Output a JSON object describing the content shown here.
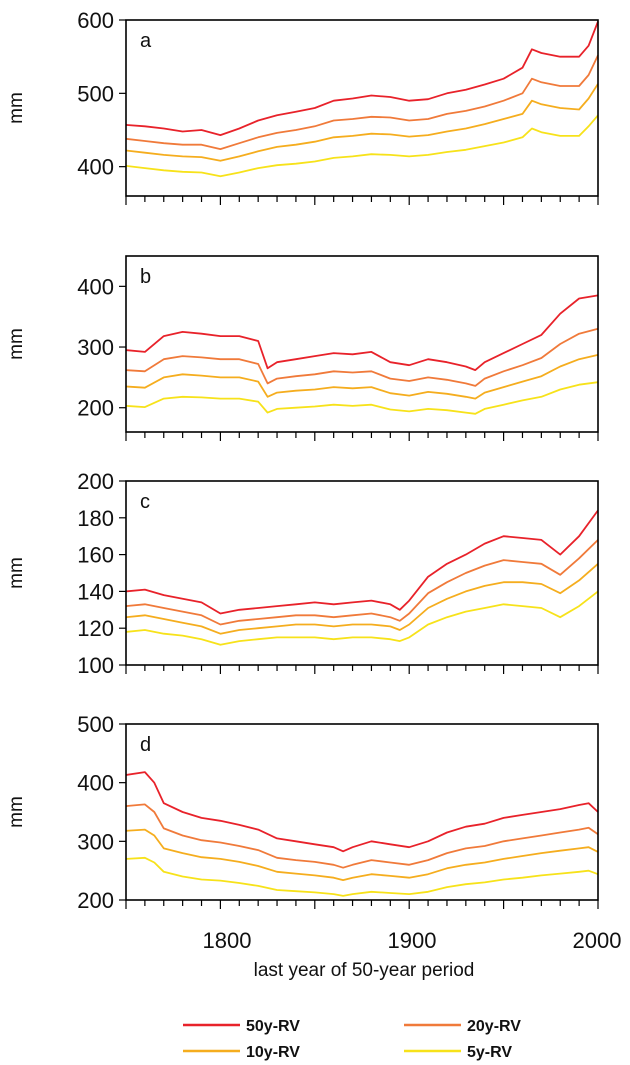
{
  "figure": {
    "xlabel": "last year of 50-year period",
    "x_ticks": [
      "1800",
      "1900",
      "2000"
    ]
  },
  "legend": [
    {
      "label": "50y-RV",
      "color": "#e8222a"
    },
    {
      "label": "20y-RV",
      "color": "#f07a3a"
    },
    {
      "label": "10y-RV",
      "color": "#f5ad1e"
    },
    {
      "label": "5y-RV",
      "color": "#f7e21a"
    }
  ],
  "chart_data": [
    {
      "type": "line",
      "panel": "a",
      "ylabel": "mm",
      "xlim": [
        1750,
        2000
      ],
      "ylim": [
        360,
        600
      ],
      "y_ticks": [
        "400",
        "500",
        "600"
      ],
      "x": [
        1750,
        1760,
        1770,
        1780,
        1790,
        1800,
        1810,
        1820,
        1830,
        1840,
        1850,
        1860,
        1870,
        1880,
        1890,
        1900,
        1910,
        1920,
        1930,
        1940,
        1950,
        1960,
        1965,
        1970,
        1980,
        1990,
        1995,
        2000
      ],
      "series": [
        {
          "name": "50y-RV",
          "color": "#e8222a",
          "values": [
            457,
            455,
            452,
            448,
            450,
            443,
            452,
            463,
            470,
            475,
            480,
            490,
            493,
            497,
            495,
            490,
            492,
            500,
            505,
            512,
            520,
            535,
            560,
            555,
            550,
            550,
            565,
            598
          ]
        },
        {
          "name": "20y-RV",
          "color": "#f07a3a",
          "values": [
            438,
            435,
            432,
            430,
            430,
            424,
            432,
            440,
            446,
            450,
            455,
            463,
            465,
            468,
            467,
            463,
            465,
            472,
            476,
            482,
            490,
            500,
            520,
            515,
            510,
            510,
            525,
            552
          ]
        },
        {
          "name": "10y-RV",
          "color": "#f5ad1e",
          "values": [
            422,
            419,
            416,
            414,
            413,
            408,
            414,
            421,
            427,
            430,
            434,
            440,
            442,
            445,
            444,
            441,
            443,
            448,
            452,
            458,
            465,
            472,
            490,
            485,
            480,
            478,
            493,
            513
          ]
        },
        {
          "name": "5y-RV",
          "color": "#f7e21a",
          "values": [
            401,
            398,
            395,
            393,
            392,
            387,
            392,
            398,
            402,
            404,
            407,
            412,
            414,
            417,
            416,
            414,
            416,
            420,
            423,
            428,
            433,
            440,
            452,
            447,
            442,
            442,
            455,
            470
          ]
        }
      ]
    },
    {
      "type": "line",
      "panel": "b",
      "ylabel": "mm",
      "xlim": [
        1750,
        2000
      ],
      "ylim": [
        160,
        450
      ],
      "y_ticks": [
        "200",
        "300",
        "400"
      ],
      "x": [
        1750,
        1760,
        1770,
        1780,
        1790,
        1800,
        1810,
        1820,
        1825,
        1830,
        1840,
        1850,
        1860,
        1870,
        1880,
        1890,
        1900,
        1910,
        1920,
        1930,
        1935,
        1940,
        1950,
        1960,
        1970,
        1980,
        1990,
        2000
      ],
      "series": [
        {
          "name": "50y-RV",
          "color": "#e8222a",
          "values": [
            295,
            292,
            318,
            325,
            322,
            318,
            318,
            310,
            265,
            275,
            280,
            285,
            290,
            288,
            292,
            275,
            270,
            280,
            275,
            268,
            262,
            275,
            290,
            305,
            320,
            355,
            380,
            385
          ]
        },
        {
          "name": "20y-RV",
          "color": "#f07a3a",
          "values": [
            262,
            260,
            280,
            285,
            283,
            280,
            280,
            272,
            240,
            248,
            252,
            255,
            260,
            258,
            260,
            248,
            244,
            250,
            246,
            240,
            236,
            248,
            260,
            270,
            282,
            305,
            322,
            330
          ]
        },
        {
          "name": "10y-RV",
          "color": "#f5ad1e",
          "values": [
            235,
            233,
            250,
            255,
            253,
            250,
            250,
            243,
            218,
            225,
            228,
            230,
            234,
            232,
            234,
            224,
            220,
            226,
            223,
            218,
            215,
            225,
            234,
            243,
            252,
            268,
            280,
            287
          ]
        },
        {
          "name": "5y-RV",
          "color": "#f7e21a",
          "values": [
            203,
            201,
            215,
            218,
            217,
            215,
            215,
            210,
            192,
            198,
            200,
            202,
            205,
            203,
            205,
            197,
            194,
            198,
            196,
            192,
            190,
            198,
            205,
            212,
            218,
            230,
            238,
            242
          ]
        }
      ]
    },
    {
      "type": "line",
      "panel": "c",
      "ylabel": "mm",
      "xlim": [
        1750,
        2000
      ],
      "ylim": [
        100,
        200
      ],
      "y_ticks": [
        "100",
        "120",
        "140",
        "160",
        "180",
        "200"
      ],
      "x": [
        1750,
        1760,
        1770,
        1780,
        1790,
        1800,
        1810,
        1820,
        1830,
        1840,
        1850,
        1860,
        1870,
        1880,
        1890,
        1895,
        1900,
        1910,
        1920,
        1930,
        1940,
        1950,
        1960,
        1970,
        1980,
        1990,
        2000
      ],
      "series": [
        {
          "name": "50y-RV",
          "color": "#e8222a",
          "values": [
            140,
            141,
            138,
            136,
            134,
            128,
            130,
            131,
            132,
            133,
            134,
            133,
            134,
            135,
            133,
            130,
            135,
            148,
            155,
            160,
            166,
            170,
            169,
            168,
            160,
            170,
            184
          ]
        },
        {
          "name": "20y-RV",
          "color": "#f07a3a",
          "values": [
            132,
            133,
            131,
            129,
            127,
            122,
            124,
            125,
            126,
            127,
            127,
            126,
            127,
            128,
            126,
            124,
            128,
            139,
            145,
            150,
            154,
            157,
            156,
            155,
            149,
            158,
            168
          ]
        },
        {
          "name": "10y-RV",
          "color": "#f5ad1e",
          "values": [
            126,
            127,
            125,
            123,
            121,
            117,
            119,
            120,
            121,
            122,
            122,
            121,
            122,
            122,
            121,
            119,
            122,
            131,
            136,
            140,
            143,
            145,
            145,
            144,
            139,
            146,
            155
          ]
        },
        {
          "name": "5y-RV",
          "color": "#f7e21a",
          "values": [
            118,
            119,
            117,
            116,
            114,
            111,
            113,
            114,
            115,
            115,
            115,
            114,
            115,
            115,
            114,
            113,
            115,
            122,
            126,
            129,
            131,
            133,
            132,
            131,
            126,
            132,
            140
          ]
        }
      ]
    },
    {
      "type": "line",
      "panel": "d",
      "ylabel": "mm",
      "xlim": [
        1750,
        2000
      ],
      "ylim": [
        200,
        500
      ],
      "y_ticks": [
        "200",
        "300",
        "400",
        "500"
      ],
      "x": [
        1750,
        1760,
        1765,
        1770,
        1780,
        1790,
        1800,
        1810,
        1820,
        1830,
        1840,
        1850,
        1860,
        1865,
        1870,
        1880,
        1890,
        1900,
        1910,
        1920,
        1930,
        1940,
        1950,
        1960,
        1970,
        1980,
        1990,
        1995,
        2000
      ],
      "series": [
        {
          "name": "50y-RV",
          "color": "#e8222a",
          "values": [
            413,
            418,
            400,
            365,
            350,
            340,
            335,
            328,
            320,
            305,
            300,
            295,
            290,
            283,
            290,
            300,
            295,
            290,
            300,
            315,
            325,
            330,
            340,
            345,
            350,
            355,
            362,
            365,
            350
          ]
        },
        {
          "name": "20y-RV",
          "color": "#f07a3a",
          "values": [
            360,
            363,
            350,
            322,
            310,
            302,
            298,
            292,
            285,
            272,
            268,
            265,
            260,
            255,
            260,
            268,
            264,
            260,
            268,
            280,
            288,
            292,
            300,
            305,
            310,
            315,
            320,
            323,
            312
          ]
        },
        {
          "name": "10y-RV",
          "color": "#f5ad1e",
          "values": [
            318,
            320,
            310,
            288,
            280,
            273,
            270,
            265,
            258,
            248,
            245,
            242,
            238,
            234,
            238,
            244,
            241,
            238,
            244,
            254,
            260,
            264,
            270,
            275,
            280,
            284,
            288,
            290,
            282
          ]
        },
        {
          "name": "5y-RV",
          "color": "#f7e21a",
          "values": [
            270,
            272,
            264,
            248,
            240,
            235,
            233,
            229,
            224,
            217,
            215,
            213,
            210,
            207,
            210,
            214,
            212,
            210,
            214,
            222,
            227,
            230,
            235,
            238,
            242,
            245,
            248,
            250,
            244
          ]
        }
      ]
    }
  ]
}
